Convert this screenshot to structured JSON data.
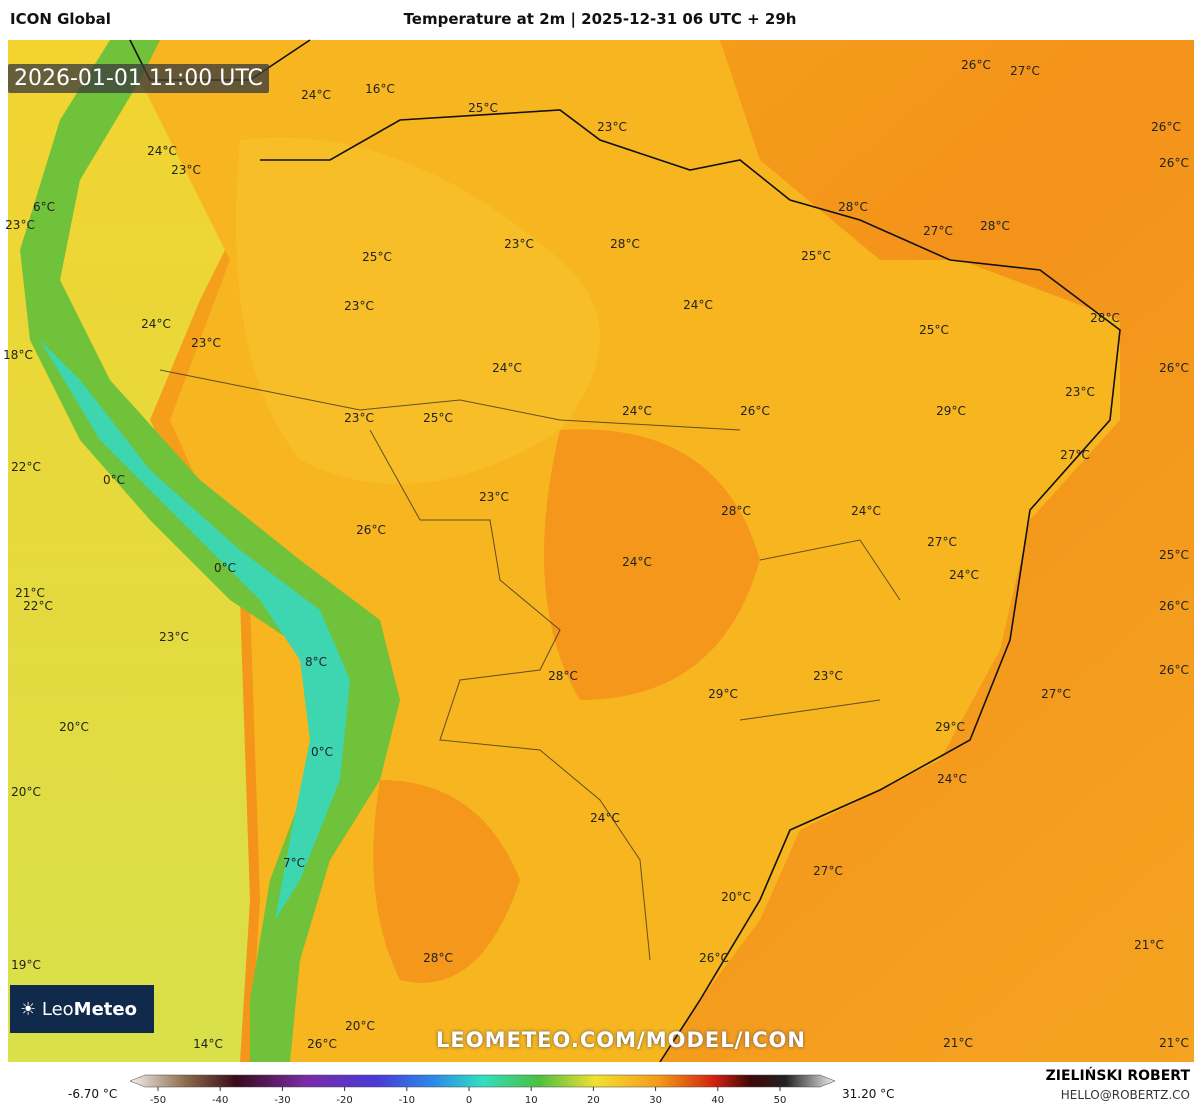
{
  "header": {
    "model": "ICON Global",
    "title": "Temperature at 2m | 2025-12-31 06 UTC + 29h"
  },
  "valid_time": "2026-01-01 11:00 UTC",
  "logo": {
    "brand_light": "Leo",
    "brand_bold": "Meteo"
  },
  "watermark": "LEOMETEO.COM/MODEL/ICON",
  "map_labels": [
    "26°C",
    "27°C",
    "24°C",
    "16°C",
    "25°C",
    "23°C",
    "26°C",
    "26°C",
    "24°C",
    "23°C",
    "6°C",
    "23°C",
    "28°C",
    "27°C",
    "28°C",
    "23°C",
    "28°C",
    "25°C",
    "25°C",
    "23°C",
    "24°C",
    "24°C",
    "23°C",
    "25°C",
    "28°C",
    "18°C",
    "24°C",
    "26°C",
    "23°C",
    "23°C",
    "25°C",
    "24°C",
    "26°C",
    "29°C",
    "27°C",
    "22°C",
    "0°C",
    "23°C",
    "28°C",
    "24°C",
    "26°C",
    "27°C",
    "0°C",
    "24°C",
    "24°C",
    "25°C",
    "21°C",
    "22°C",
    "26°C",
    "23°C",
    "8°C",
    "28°C",
    "23°C",
    "26°C",
    "29°C",
    "27°C",
    "20°C",
    "29°C",
    "0°C",
    "24°C",
    "20°C",
    "24°C",
    "27°C",
    "7°C",
    "20°C",
    "21°C",
    "19°C",
    "28°C",
    "26°C",
    "20°C",
    "14°C",
    "26°C",
    "21°C",
    "21°C"
  ],
  "colorbar": {
    "min_label": "-6.70 °C",
    "max_label": "31.20 °C",
    "ticks": [
      -50,
      -40,
      -30,
      -20,
      -10,
      0,
      10,
      20,
      30,
      40,
      50
    ]
  },
  "footer": {
    "author": "ZIELIŃSKI ROBERT",
    "email": "HELLO@ROBERTZ.CO"
  }
}
